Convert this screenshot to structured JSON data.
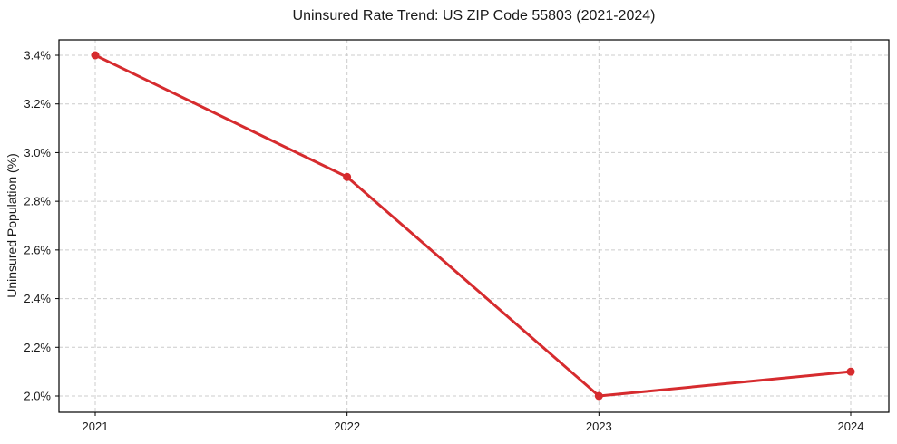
{
  "chart_data": {
    "type": "line",
    "title": "Uninsured Rate Trend: US ZIP Code 55803 (2021-2024)",
    "xlabel": "",
    "ylabel": "Uninsured Population (%)",
    "x": [
      2021,
      2022,
      2023,
      2024
    ],
    "x_tick_labels": [
      "2021",
      "2022",
      "2023",
      "2024"
    ],
    "series": [
      {
        "name": "uninsured-rate",
        "values": [
          3.4,
          2.9,
          2.0,
          2.1
        ]
      }
    ],
    "y_ticks": [
      2.0,
      2.2,
      2.4,
      2.6,
      2.8,
      3.0,
      3.2,
      3.4
    ],
    "y_tick_labels": [
      "2.0%",
      "2.2%",
      "2.4%",
      "2.6%",
      "2.8%",
      "3.0%",
      "3.2%",
      "3.4%"
    ],
    "ylim": [
      2.0,
      3.4
    ],
    "grid": true,
    "legend": "none",
    "line_color": "#d62b2e",
    "grid_color": "#cccccc",
    "axis_color": "#000000",
    "marker": "circle"
  }
}
